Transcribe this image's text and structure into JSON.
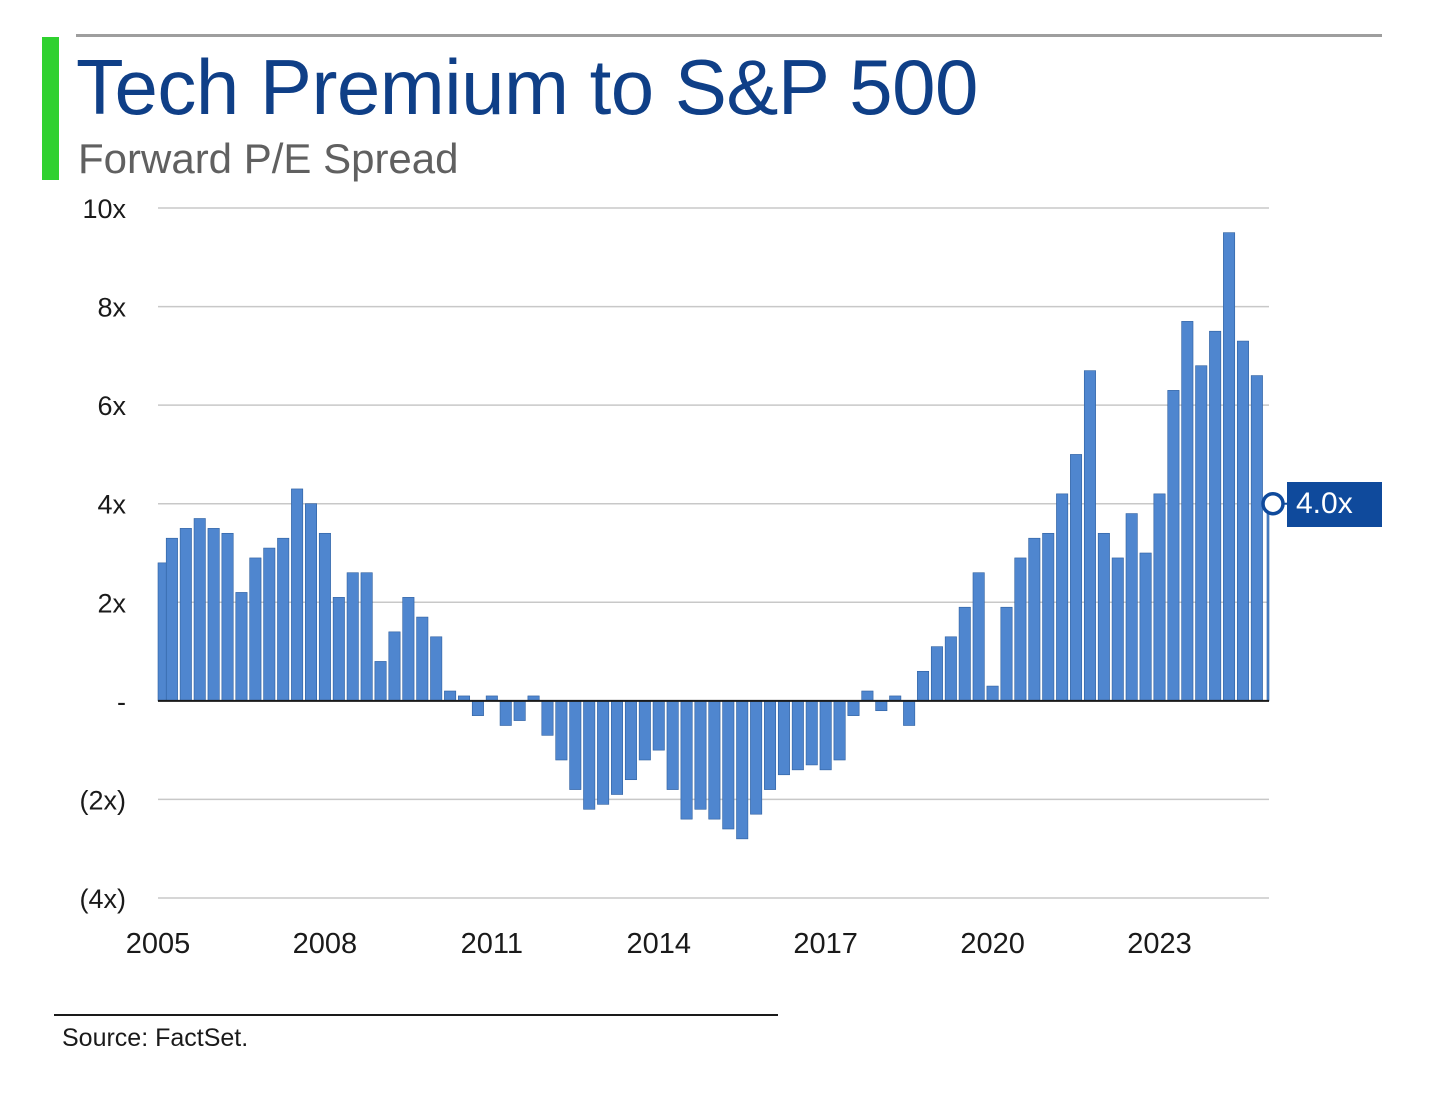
{
  "header": {
    "title": "Tech Premium to S&P 500",
    "subtitle": "Forward P/E Spread"
  },
  "footer": {
    "source": "Source: FactSet."
  },
  "colors": {
    "title": "#0f3f87",
    "accent_bar": "#2fd12f",
    "bars": "#4f86cf",
    "bar_edge": "#2e5f9f",
    "callout": "#0f4a9c",
    "gridline": "#c8c8c8",
    "axis_line": "#1a1a1a",
    "top_rule": "#9e9e9e"
  },
  "chart_data": {
    "type": "bar",
    "title": "Tech Premium to S&P 500",
    "subtitle": "Forward P/E Spread",
    "xlabel": "",
    "ylabel": "",
    "x_ticks": [
      "2005",
      "2008",
      "2011",
      "2014",
      "2017",
      "2020",
      "2023"
    ],
    "y_ticks": [
      {
        "value": 10,
        "label": "10x"
      },
      {
        "value": 8,
        "label": "8x"
      },
      {
        "value": 6,
        "label": "6x"
      },
      {
        "value": 4,
        "label": "4x"
      },
      {
        "value": 2,
        "label": "2x"
      },
      {
        "value": 0,
        "label": "-"
      },
      {
        "value": -2,
        "label": "(2x)"
      },
      {
        "value": -4,
        "label": "(4x)"
      }
    ],
    "xlim": [
      2005.0,
      2024.95
    ],
    "ylim": [
      -4,
      10
    ],
    "grid": true,
    "legend": "none",
    "callout": {
      "label": "4.0x",
      "value": 4.0
    },
    "x": [
      2005.0,
      2005.25,
      2005.5,
      2005.75,
      2006.0,
      2006.25,
      2006.5,
      2006.75,
      2007.0,
      2007.25,
      2007.5,
      2007.75,
      2008.0,
      2008.25,
      2008.5,
      2008.75,
      2009.0,
      2009.25,
      2009.5,
      2009.75,
      2010.0,
      2010.25,
      2010.5,
      2010.75,
      2011.0,
      2011.25,
      2011.5,
      2011.75,
      2012.0,
      2012.25,
      2012.5,
      2012.75,
      2013.0,
      2013.25,
      2013.5,
      2013.75,
      2014.0,
      2014.25,
      2014.5,
      2014.75,
      2015.0,
      2015.25,
      2015.5,
      2015.75,
      2016.0,
      2016.25,
      2016.5,
      2016.75,
      2017.0,
      2017.25,
      2017.5,
      2017.75,
      2018.0,
      2018.25,
      2018.5,
      2018.75,
      2019.0,
      2019.25,
      2019.5,
      2019.75,
      2020.0,
      2020.25,
      2020.5,
      2020.75,
      2021.0,
      2021.25,
      2021.5,
      2021.75,
      2022.0,
      2022.25,
      2022.5,
      2022.75,
      2023.0,
      2023.25,
      2023.5,
      2023.75,
      2024.0,
      2024.25,
      2024.5,
      2024.75,
      2024.95
    ],
    "values": [
      2.8,
      3.3,
      3.5,
      3.7,
      3.5,
      3.4,
      2.2,
      2.9,
      3.1,
      3.3,
      4.3,
      4.0,
      3.4,
      2.1,
      2.6,
      2.6,
      0.8,
      1.4,
      2.1,
      1.7,
      1.3,
      0.2,
      0.1,
      -0.3,
      0.1,
      -0.5,
      -0.4,
      0.1,
      -0.7,
      -1.2,
      -1.8,
      -2.2,
      -2.1,
      -1.9,
      -1.6,
      -1.2,
      -1.0,
      -1.8,
      -2.4,
      -2.2,
      -2.4,
      -2.6,
      -2.8,
      -2.3,
      -1.8,
      -1.5,
      -1.4,
      -1.3,
      -1.4,
      -1.2,
      -0.3,
      0.2,
      -0.2,
      0.1,
      -0.5,
      0.6,
      1.1,
      1.3,
      1.9,
      2.6,
      0.3,
      1.9,
      2.9,
      3.3,
      3.4,
      4.2,
      5.0,
      6.7,
      3.4,
      2.9,
      3.8,
      3.0,
      4.2,
      6.3,
      7.7,
      6.8,
      7.5,
      9.5,
      7.3,
      6.6,
      4.0
    ]
  }
}
